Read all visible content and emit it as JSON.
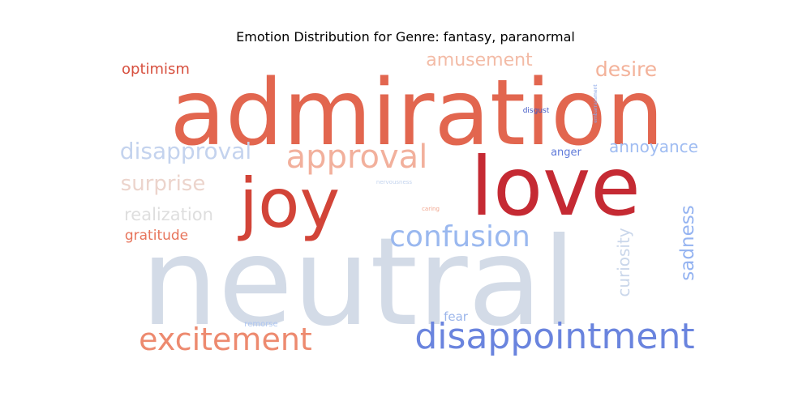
{
  "chart_data": {
    "type": "wordcloud",
    "title": "Emotion Distribution for Genre: fantasy, paranormal",
    "words": [
      {
        "text": "neutral",
        "weight": 100,
        "color": "#d3dbe7"
      },
      {
        "text": "admiration",
        "weight": 78,
        "color": "#e2664f"
      },
      {
        "text": "love",
        "weight": 62,
        "color": "#c52a33"
      },
      {
        "text": "joy",
        "weight": 50,
        "color": "#d24438"
      },
      {
        "text": "disappointment",
        "weight": 28,
        "color": "#6a84de"
      },
      {
        "text": "approval",
        "weight": 26,
        "color": "#f2b09c"
      },
      {
        "text": "excitement",
        "weight": 24,
        "color": "#ed8a6f"
      },
      {
        "text": "confusion",
        "weight": 22,
        "color": "#9ab8ef"
      },
      {
        "text": "disapproval",
        "weight": 18,
        "color": "#c4d3ee"
      },
      {
        "text": "surprise",
        "weight": 17,
        "color": "#ecd4cc"
      },
      {
        "text": "amusement",
        "weight": 15,
        "color": "#f3bba6"
      },
      {
        "text": "desire",
        "weight": 15,
        "color": "#f3b29a"
      },
      {
        "text": "annoyance",
        "weight": 13,
        "color": "#9fbcf2"
      },
      {
        "text": "realization",
        "weight": 13,
        "color": "#dedede"
      },
      {
        "text": "curiosity",
        "weight": 13,
        "color": "#c9d6ea"
      },
      {
        "text": "sadness",
        "weight": 13,
        "color": "#94b3f1"
      },
      {
        "text": "optimism",
        "weight": 11,
        "color": "#d7503f"
      },
      {
        "text": "gratitude",
        "weight": 11,
        "color": "#e7745b"
      },
      {
        "text": "fear",
        "weight": 9,
        "color": "#9bb5ea"
      },
      {
        "text": "anger",
        "weight": 8,
        "color": "#5f7ad9"
      },
      {
        "text": "disgust",
        "weight": 6,
        "color": "#3f57c5"
      },
      {
        "text": "remorse",
        "weight": 5,
        "color": "#aec6f1"
      },
      {
        "text": "nervousness",
        "weight": 4,
        "color": "#c4d4ee"
      },
      {
        "text": "caring",
        "weight": 4,
        "color": "#f1a58d"
      },
      {
        "text": "embarrassment",
        "weight": 3,
        "color": "#8ca8e9"
      }
    ]
  }
}
